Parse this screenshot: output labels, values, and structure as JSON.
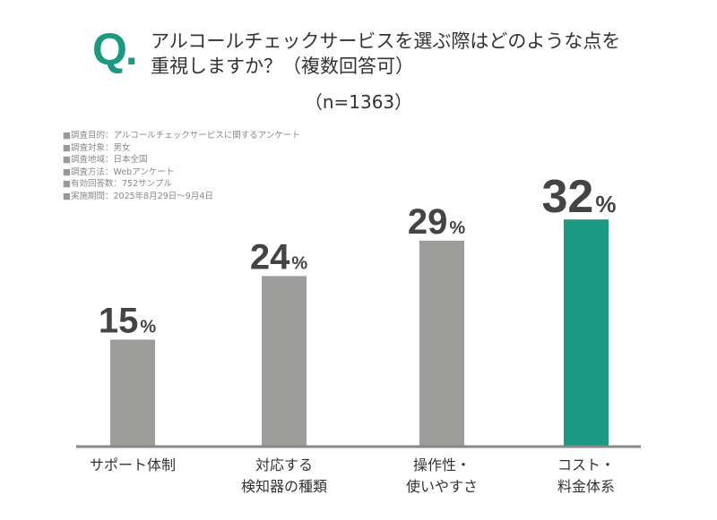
{
  "header": {
    "q_mark": "Q.",
    "title_line1": "アルコールチェックサービスを選ぶ際はどのような点を",
    "title_line2": "重視しますか？（複数回答可）",
    "sample": "（n=1363）"
  },
  "notes": [
    "調査目的：アルコールチェックサービスに関するアンケート",
    "調査対象：男女",
    "調査地域：日本全国",
    "調査方法：Webアンケート",
    "有効回答数：752サンプル",
    "実施期間：2025年8月29日～9月4日"
  ],
  "chart_data": {
    "type": "bar",
    "categories": [
      [
        "サポート体制"
      ],
      [
        "対応する",
        "検知器の種類"
      ],
      [
        "操作性・",
        "使いやすさ"
      ],
      [
        "コスト・",
        "料金体系"
      ]
    ],
    "values": [
      15,
      24,
      29,
      32
    ],
    "unit": "%",
    "colors": [
      "#9d9d9b",
      "#9d9d9b",
      "#9d9d9b",
      "#1a9a82"
    ],
    "ylim": [
      0,
      35
    ],
    "grid": false
  }
}
